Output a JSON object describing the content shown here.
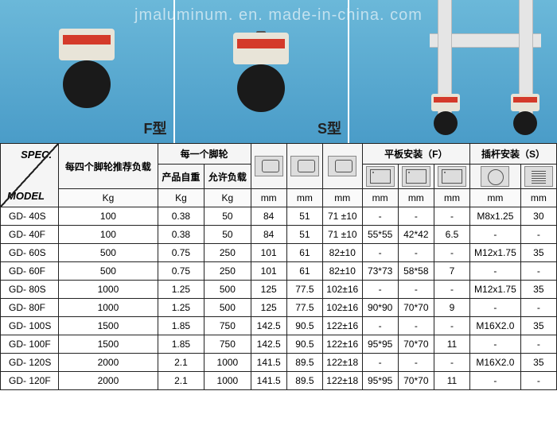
{
  "watermark": "jmaluminum. en. made-in-china. com",
  "images": {
    "label1": "F型",
    "label2": "S型"
  },
  "header": {
    "spec_top": "SPEC.",
    "spec_bottom": "MODEL",
    "col_group1": "每四个脚轮推荐负载",
    "col_group2": "每一个脚轮",
    "col_sub2a": "产品自重",
    "col_sub2b": "允许负载",
    "col_group_f": "平板安装（F）",
    "col_group_s": "插杆安装（S）"
  },
  "units": [
    "Kg",
    "Kg",
    "Kg",
    "mm",
    "mm",
    "mm",
    "mm",
    "mm",
    "mm",
    "mm",
    "mm"
  ],
  "rows": [
    {
      "m": "GD- 40S",
      "v": [
        "100",
        "0.38",
        "50",
        "84",
        "51",
        "71 ±10",
        "-",
        "-",
        "-",
        "M8x1.25",
        "30"
      ]
    },
    {
      "m": "GD- 40F",
      "v": [
        "100",
        "0.38",
        "50",
        "84",
        "51",
        "71 ±10",
        "55*55",
        "42*42",
        "6.5",
        "-",
        "-"
      ]
    },
    {
      "m": "GD- 60S",
      "v": [
        "500",
        "0.75",
        "250",
        "101",
        "61",
        "82±10",
        "-",
        "-",
        "-",
        "M12x1.75",
        "35"
      ]
    },
    {
      "m": "GD- 60F",
      "v": [
        "500",
        "0.75",
        "250",
        "101",
        "61",
        "82±10",
        "73*73",
        "58*58",
        "7",
        "-",
        "-"
      ]
    },
    {
      "m": "GD- 80S",
      "v": [
        "1000",
        "1.25",
        "500",
        "125",
        "77.5",
        "102±16",
        "-",
        "-",
        "-",
        "M12x1.75",
        "35"
      ]
    },
    {
      "m": "GD- 80F",
      "v": [
        "1000",
        "1.25",
        "500",
        "125",
        "77.5",
        "102±16",
        "90*90",
        "70*70",
        "9",
        "-",
        "-"
      ]
    },
    {
      "m": "GD- 100S",
      "v": [
        "1500",
        "1.85",
        "750",
        "142.5",
        "90.5",
        "122±16",
        "-",
        "-",
        "-",
        "M16X2.0",
        "35"
      ]
    },
    {
      "m": "GD- 100F",
      "v": [
        "1500",
        "1.85",
        "750",
        "142.5",
        "90.5",
        "122±16",
        "95*95",
        "70*70",
        "11",
        "-",
        "-"
      ]
    },
    {
      "m": "GD- 120S",
      "v": [
        "2000",
        "2.1",
        "1000",
        "141.5",
        "89.5",
        "122±18",
        "-",
        "-",
        "-",
        "M16X2.0",
        "35"
      ]
    },
    {
      "m": "GD- 120F",
      "v": [
        "2000",
        "2.1",
        "1000",
        "141.5",
        "89.5",
        "122±18",
        "95*95",
        "70*70",
        "11",
        "-",
        "-"
      ]
    }
  ]
}
